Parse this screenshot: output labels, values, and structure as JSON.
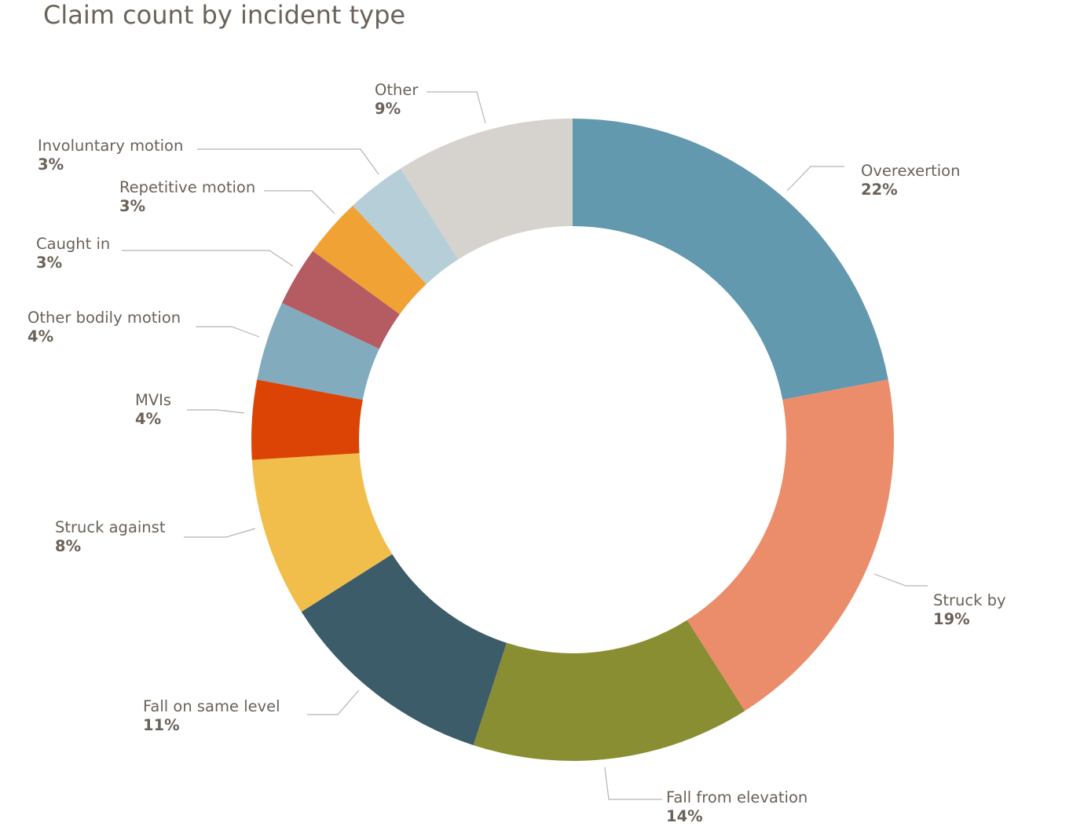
{
  "chart_data": {
    "type": "pie",
    "donut": true,
    "title": "Claim count by incident type",
    "legend": "none",
    "slices": [
      {
        "label": "Overexertion",
        "value": 22,
        "value_label": "22%",
        "color": "#6399af"
      },
      {
        "label": "Struck by",
        "value": 19,
        "value_label": "19%",
        "color": "#eb8d6b"
      },
      {
        "label": "Fall from elevation",
        "value": 14,
        "value_label": "14%",
        "color": "#898e32"
      },
      {
        "label": "Fall on same level",
        "value": 11,
        "value_label": "11%",
        "color": "#3c5c6a"
      },
      {
        "label": "Struck against",
        "value": 8,
        "value_label": "8%",
        "color": "#f1be4b"
      },
      {
        "label": "MVIs",
        "value": 4,
        "value_label": "4%",
        "color": "#dc4405"
      },
      {
        "label": "Other bodily motion",
        "value": 4,
        "value_label": "4%",
        "color": "#83abbe"
      },
      {
        "label": "Caught in",
        "value": 3,
        "value_label": "3%",
        "color": "#b45c62"
      },
      {
        "label": "Repetitive motion",
        "value": 3,
        "value_label": "3%",
        "color": "#f1a235"
      },
      {
        "label": "Involuntary motion",
        "value": 3,
        "value_label": "3%",
        "color": "#b5ced8"
      },
      {
        "label": "Other",
        "value": 9,
        "value_label": "9%",
        "color": "#d6d2ce"
      }
    ]
  }
}
